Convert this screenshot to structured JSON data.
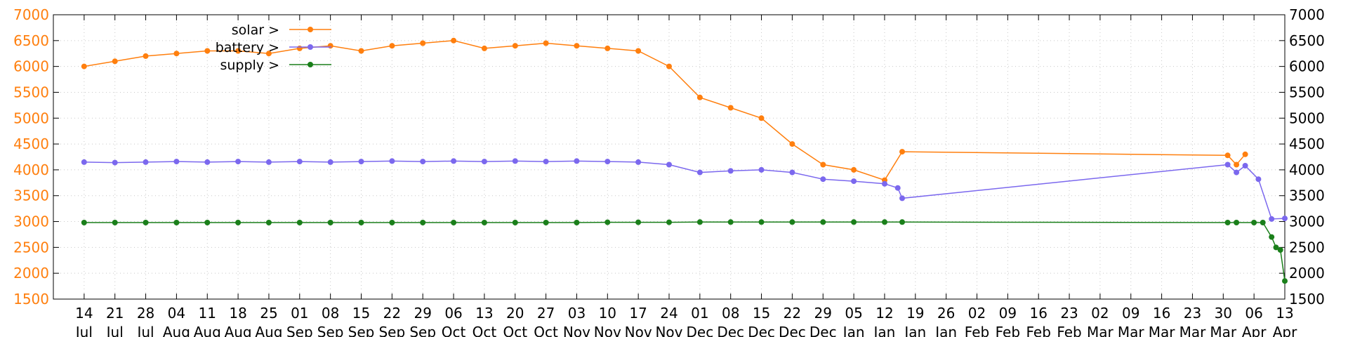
{
  "chart_data": {
    "type": "line",
    "title": "",
    "xlabel": "",
    "ylabel": "",
    "ylim": [
      1500,
      7000
    ],
    "y_ticks": [
      1500,
      2000,
      2500,
      3000,
      3500,
      4000,
      4500,
      5000,
      5500,
      6000,
      6500,
      7000
    ],
    "y_ticks_right": [
      1500,
      2000,
      2500,
      3000,
      3500,
      4000,
      4500,
      5000,
      5500,
      6000,
      6500,
      7000
    ],
    "grid": true,
    "legend_position": "top-left",
    "x_ticks": [
      {
        "day": "14",
        "month": "Jul"
      },
      {
        "day": "21",
        "month": "Jul"
      },
      {
        "day": "28",
        "month": "Jul"
      },
      {
        "day": "04",
        "month": "Aug"
      },
      {
        "day": "11",
        "month": "Aug"
      },
      {
        "day": "18",
        "month": "Aug"
      },
      {
        "day": "25",
        "month": "Aug"
      },
      {
        "day": "01",
        "month": "Sep"
      },
      {
        "day": "08",
        "month": "Sep"
      },
      {
        "day": "15",
        "month": "Sep"
      },
      {
        "day": "22",
        "month": "Sep"
      },
      {
        "day": "29",
        "month": "Sep"
      },
      {
        "day": "06",
        "month": "Oct"
      },
      {
        "day": "13",
        "month": "Oct"
      },
      {
        "day": "20",
        "month": "Oct"
      },
      {
        "day": "27",
        "month": "Oct"
      },
      {
        "day": "03",
        "month": "Nov"
      },
      {
        "day": "10",
        "month": "Nov"
      },
      {
        "day": "17",
        "month": "Nov"
      },
      {
        "day": "24",
        "month": "Nov"
      },
      {
        "day": "01",
        "month": "Dec"
      },
      {
        "day": "08",
        "month": "Dec"
      },
      {
        "day": "15",
        "month": "Dec"
      },
      {
        "day": "22",
        "month": "Dec"
      },
      {
        "day": "29",
        "month": "Dec"
      },
      {
        "day": "05",
        "month": "Jan"
      },
      {
        "day": "12",
        "month": "Jan"
      },
      {
        "day": "19",
        "month": "Jan"
      },
      {
        "day": "26",
        "month": "Jan"
      },
      {
        "day": "02",
        "month": "Feb"
      },
      {
        "day": "09",
        "month": "Feb"
      },
      {
        "day": "16",
        "month": "Feb"
      },
      {
        "day": "23",
        "month": "Feb"
      },
      {
        "day": "02",
        "month": "Mar"
      },
      {
        "day": "09",
        "month": "Mar"
      },
      {
        "day": "16",
        "month": "Mar"
      },
      {
        "day": "23",
        "month": "Mar"
      },
      {
        "day": "30",
        "month": "Mar"
      },
      {
        "day": "06",
        "month": "Apr"
      },
      {
        "day": "13",
        "month": "Apr"
      }
    ],
    "series": [
      {
        "name": "solar >",
        "color": "#ff7f0e",
        "marker": "circle",
        "x": [
          "Jul 14",
          "Jul 21",
          "Jul 28",
          "Aug 04",
          "Aug 11",
          "Aug 18",
          "Aug 25",
          "Sep 01",
          "Sep 08",
          "Sep 15",
          "Sep 22",
          "Sep 29",
          "Oct 06",
          "Oct 13",
          "Oct 20",
          "Oct 27",
          "Nov 03",
          "Nov 10",
          "Nov 17",
          "Nov 24",
          "Dec 01",
          "Dec 08",
          "Dec 15",
          "Dec 22",
          "Dec 29",
          "Jan 05",
          "Jan 12",
          "Jan 16",
          "Mar 31",
          "Apr 02",
          "Apr 04"
        ],
        "y": [
          6000,
          6100,
          6200,
          6250,
          6300,
          6300,
          6250,
          6350,
          6400,
          6300,
          6400,
          6450,
          6500,
          6350,
          6400,
          6450,
          6400,
          6350,
          6300,
          6000,
          5400,
          5200,
          5000,
          4500,
          4100,
          4000,
          3800,
          4350,
          4280,
          4100,
          4300
        ]
      },
      {
        "name": "battery >",
        "color": "#7b68ee",
        "marker": "circle",
        "x": [
          "Jul 14",
          "Jul 21",
          "Jul 28",
          "Aug 04",
          "Aug 11",
          "Aug 18",
          "Aug 25",
          "Sep 01",
          "Sep 08",
          "Sep 15",
          "Sep 22",
          "Sep 29",
          "Oct 06",
          "Oct 13",
          "Oct 20",
          "Oct 27",
          "Nov 03",
          "Nov 10",
          "Nov 17",
          "Nov 24",
          "Dec 01",
          "Dec 08",
          "Dec 15",
          "Dec 22",
          "Dec 29",
          "Jan 05",
          "Jan 12",
          "Jan 15",
          "Jan 16",
          "Mar 31",
          "Apr 02",
          "Apr 04",
          "Apr 07",
          "Apr 10",
          "Apr 13"
        ],
        "y": [
          4150,
          4140,
          4150,
          4160,
          4150,
          4160,
          4150,
          4160,
          4150,
          4160,
          4170,
          4160,
          4170,
          4160,
          4170,
          4160,
          4170,
          4160,
          4150,
          4100,
          3950,
          3980,
          4000,
          3950,
          3820,
          3780,
          3730,
          3650,
          3450,
          4100,
          3950,
          4080,
          3820,
          3050,
          3060
        ]
      },
      {
        "name": "supply >",
        "color": "#1a7f1a",
        "marker": "circle",
        "x": [
          "Jul 14",
          "Jul 21",
          "Jul 28",
          "Aug 04",
          "Aug 11",
          "Aug 18",
          "Aug 25",
          "Sep 01",
          "Sep 08",
          "Sep 15",
          "Sep 22",
          "Sep 29",
          "Oct 06",
          "Oct 13",
          "Oct 20",
          "Oct 27",
          "Nov 03",
          "Nov 10",
          "Nov 17",
          "Nov 24",
          "Dec 01",
          "Dec 08",
          "Dec 15",
          "Dec 22",
          "Dec 29",
          "Jan 05",
          "Jan 12",
          "Jan 16",
          "Mar 31",
          "Apr 02",
          "Apr 06",
          "Apr 08",
          "Apr 10",
          "Apr 11",
          "Apr 12",
          "Apr 13"
        ],
        "y": [
          2980,
          2980,
          2980,
          2980,
          2980,
          2980,
          2980,
          2980,
          2980,
          2980,
          2980,
          2980,
          2980,
          2980,
          2980,
          2980,
          2980,
          2985,
          2985,
          2985,
          2990,
          2990,
          2990,
          2990,
          2990,
          2990,
          2990,
          2990,
          2980,
          2980,
          2980,
          2980,
          2700,
          2500,
          2450,
          1850
        ]
      }
    ]
  }
}
